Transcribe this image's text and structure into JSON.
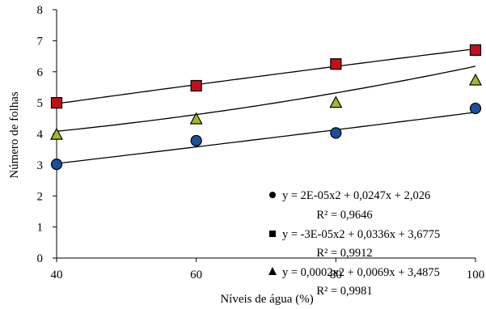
{
  "chart_data": {
    "type": "scatter",
    "xlabel": "Níveis de água (%)",
    "ylabel": "Número de folhas",
    "x": [
      40,
      60,
      80,
      100
    ],
    "x_ticks": [
      "40",
      "60",
      "80",
      "100"
    ],
    "y_ticks": [
      "0",
      "1",
      "2",
      "3",
      "4",
      "5",
      "6",
      "7",
      "8"
    ],
    "xlim": [
      40,
      100
    ],
    "ylim": [
      0,
      8
    ],
    "grid": false,
    "legend_position": "bottom-right",
    "series": [
      {
        "marker": "circle",
        "color": "#1a4f9c",
        "values": [
          3.02,
          3.78,
          4.03,
          4.82
        ],
        "trend_coeffs": [
          2e-05,
          0.0247,
          2.026
        ],
        "equation": "y = 2E-05x2  + 0,0247x  + 2,026",
        "r2": "R² = 0,9646"
      },
      {
        "marker": "square",
        "color": "#c0101a",
        "values": [
          5.0,
          5.55,
          6.25,
          6.7
        ],
        "trend_coeffs": [
          -3e-05,
          0.0336,
          3.6775
        ],
        "equation": "y = -3E-05x2  + 0,0336x  + 3,6775",
        "r2": "R² = 0,9912"
      },
      {
        "marker": "triangle",
        "color": "#a6b82a",
        "values": [
          3.97,
          4.47,
          5.0,
          5.72
        ],
        "trend_coeffs": [
          0.0002,
          0.0069,
          3.4875
        ],
        "equation": "y = 0,0002x2  + 0,0069x  + 3,4875",
        "r2": "R² = 0,9981"
      }
    ]
  }
}
